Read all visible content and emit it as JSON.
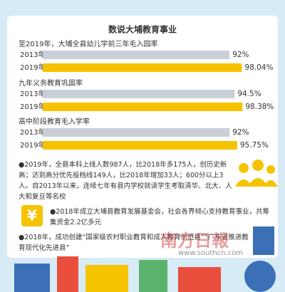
{
  "title": "数说大埔教育事业",
  "chart_data": [
    {
      "type": "bar",
      "orientation": "horizontal",
      "title": "至2019年，大埔全县幼儿学前三年毛入园率",
      "categories": [
        "2013年",
        "2019年"
      ],
      "values": [
        92,
        98.04
      ],
      "value_labels": [
        "92%",
        "98.04%"
      ],
      "colors": [
        "#c9cfd6",
        "#f6c300"
      ],
      "xlim": [
        0,
        100
      ]
    },
    {
      "type": "bar",
      "orientation": "horizontal",
      "title": "九年义务教育巩固率",
      "categories": [
        "2013年",
        "2019年"
      ],
      "values": [
        94.5,
        98.38
      ],
      "value_labels": [
        "94.5%",
        "98.38%"
      ],
      "colors": [
        "#c9cfd6",
        "#f6c300"
      ],
      "xlim": [
        0,
        100
      ]
    },
    {
      "type": "bar",
      "orientation": "horizontal",
      "title": "高中阶段教育毛入学率",
      "categories": [
        "2013年",
        "2019年"
      ],
      "values": [
        92,
        95.75
      ],
      "value_labels": [
        "92%",
        "95.75%"
      ],
      "colors": [
        "#c9cfd6",
        "#f6c300"
      ],
      "xlim": [
        0,
        100
      ]
    }
  ],
  "notes": [
    "●2019年，全县本科上线人数987人，比2018年多175人，创历史新高；达到高分优先投档线149人，比2018年增加33人；600分以上3人。自2013年以来，连续七年有县内学校就读学生考取清华、北大、人大和复旦等名校",
    "●2018年成立大埔县教育发展基金会，社会各界倾心支持教育事业，共筹集资金2.2亿多元",
    "●2018年，成功创建“国家级农村职业教育和成人教育示范县”“广东省推进教育现代化先进县”"
  ],
  "watermark": {
    "logo": "南方日報",
    "url": "www.southcn.com"
  }
}
